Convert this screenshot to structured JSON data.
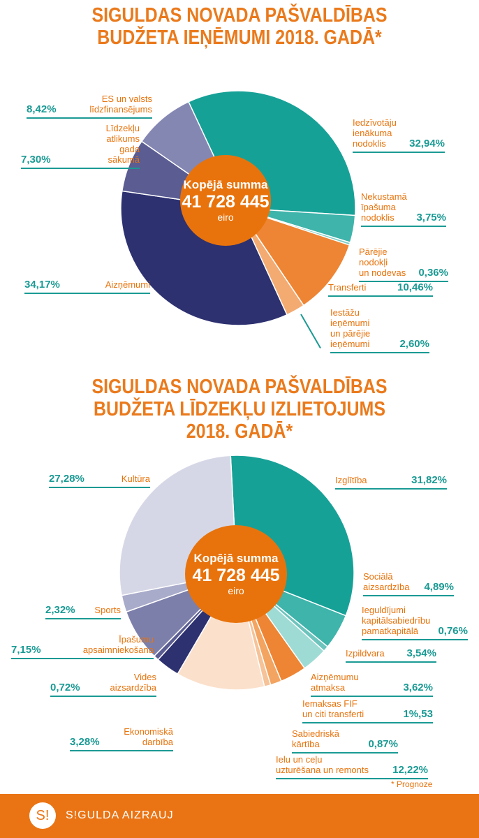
{
  "chart_data": [
    {
      "type": "pie",
      "title": "SIGULDAS NOVADA PAŠVALDĪBAS BUDŽETA IEŅĒMUMI 2018. GADĀ*",
      "title_lines": [
        "SIGULDAS NOVADA PAŠVALDĪBAS",
        "BUDŽETA IEŅĒMUMI 2018. GADĀ*"
      ],
      "center": {
        "label": "Kopējā summa",
        "value": "41 728 445",
        "unit": "eiro"
      },
      "slices": [
        {
          "label": "Iedzīvotāju ienākuma nodoklis",
          "value": 32.94,
          "pct": "32,94%",
          "color": "#16a197"
        },
        {
          "label": "Nekustamā īpašuma nodoklis",
          "value": 3.75,
          "pct": "3,75%",
          "color": "#3fb4ab"
        },
        {
          "label": "Pārējie nodokļi un nodevas",
          "value": 0.36,
          "pct": "0,36%",
          "color": "#7fcfc8"
        },
        {
          "label": "Transferti",
          "value": 10.46,
          "pct": "10,46%",
          "color": "#ee8534"
        },
        {
          "label": "Iestāžu ieņēmumi un pārējie ieņēmumi",
          "value": 2.6,
          "pct": "2,60%",
          "color": "#f3ab72"
        },
        {
          "label": "Aizņēmumi",
          "value": 34.17,
          "pct": "34,17%",
          "color": "#2d3170"
        },
        {
          "label": "Līdzekļu atlikums gada sākumā",
          "value": 7.3,
          "pct": "7,30%",
          "color": "#5a5c92"
        },
        {
          "label": "ES un valsts līdzfinansējums",
          "value": 8.42,
          "pct": "8,42%",
          "color": "#8587b3"
        }
      ]
    },
    {
      "type": "pie",
      "title": "SIGULDAS NOVADA PAŠVALDĪBAS BUDŽETA LĪDZEKĻU IZLIETOJUMS 2018. GADĀ*",
      "title_lines": [
        "SIGULDAS NOVADA PAŠVALDĪBAS",
        "BUDŽETA LĪDZEKĻU IZLIETOJUMS",
        "2018. GADĀ*"
      ],
      "center": {
        "label": "Kopējā summa",
        "value": "41 728 445",
        "unit": "eiro"
      },
      "slices": [
        {
          "label": "Izglītība",
          "value": 31.82,
          "pct": "31,82%",
          "color": "#16a197"
        },
        {
          "label": "Sociālā aizsardzība",
          "value": 4.89,
          "pct": "4,89%",
          "color": "#3fb4ab"
        },
        {
          "label": "Ieguldījumi kapitālsabiedrību pamatkapitālā",
          "value": 0.76,
          "pct": "0,76%",
          "color": "#6cc4bd"
        },
        {
          "label": "Izpildvara",
          "value": 3.54,
          "pct": "3,54%",
          "color": "#9fdbd5"
        },
        {
          "label": "Aizņēmumu atmaksa",
          "value": 3.62,
          "pct": "3,62%",
          "color": "#ee8534"
        },
        {
          "label": "Iemaksas FIF un citi transferti",
          "value": 1.53,
          "pct": "1%,53",
          "color": "#f3a461"
        },
        {
          "label": "Sabiedriskā kārtība",
          "value": 0.87,
          "pct": "0,87%",
          "color": "#f6c298"
        },
        {
          "label": "Ielu un ceļu uzturēšana un remonts",
          "value": 12.22,
          "pct": "12,22%",
          "color": "#fbe0cb"
        },
        {
          "label": "Ekonomiskā darbība",
          "value": 3.28,
          "pct": "3,28%",
          "color": "#2d3170"
        },
        {
          "label": "Vides aizsardzība",
          "value": 0.72,
          "pct": "0,72%",
          "color": "#5a5c92"
        },
        {
          "label": "Īpašumu apsaimniekošana",
          "value": 7.15,
          "pct": "7,15%",
          "color": "#7d7fab"
        },
        {
          "label": "Sports",
          "value": 2.32,
          "pct": "2,32%",
          "color": "#a9abca"
        },
        {
          "label": "Kultūra",
          "value": 27.28,
          "pct": "27,28%",
          "color": "#d6d7e6"
        }
      ]
    }
  ],
  "labels1": [
    "Iedzīvotāju\nienākuma\nnodoklis",
    "Nekustamā\nīpašuma\nnodoklis",
    "Pārējie nodokļi\nun nodevas",
    "Transferti",
    "Iestāžu\nieņēmumi\nun pārējie\nieņēmumi",
    "Aizņēmumi",
    "Līdzekļu\natlikums\ngada\nsākumā",
    "ES un valsts\nlīdzfinansējums"
  ],
  "labels2": [
    "Izglītība",
    "Sociālā\naizsardzība",
    "Ieguldījumi\nkapitālsabiedrību\npamatkapitālā",
    "Izpildvara",
    "Aizņēmumu\natmaksa",
    "Iemaksas FIF\nun citi transferti",
    "Sabiedriskā\nkārtība",
    "Ielu un ceļu\nuzturēšana un remonts",
    "Ekonomiskā\ndarbība",
    "Vides\naizsardzība",
    "Īpašumu\napsaimniekošana",
    "Sports",
    "Kultūra"
  ],
  "note": "* Prognoze",
  "footer": {
    "logo": "S!",
    "brand": "S!GULDA AIZRAUJ"
  }
}
